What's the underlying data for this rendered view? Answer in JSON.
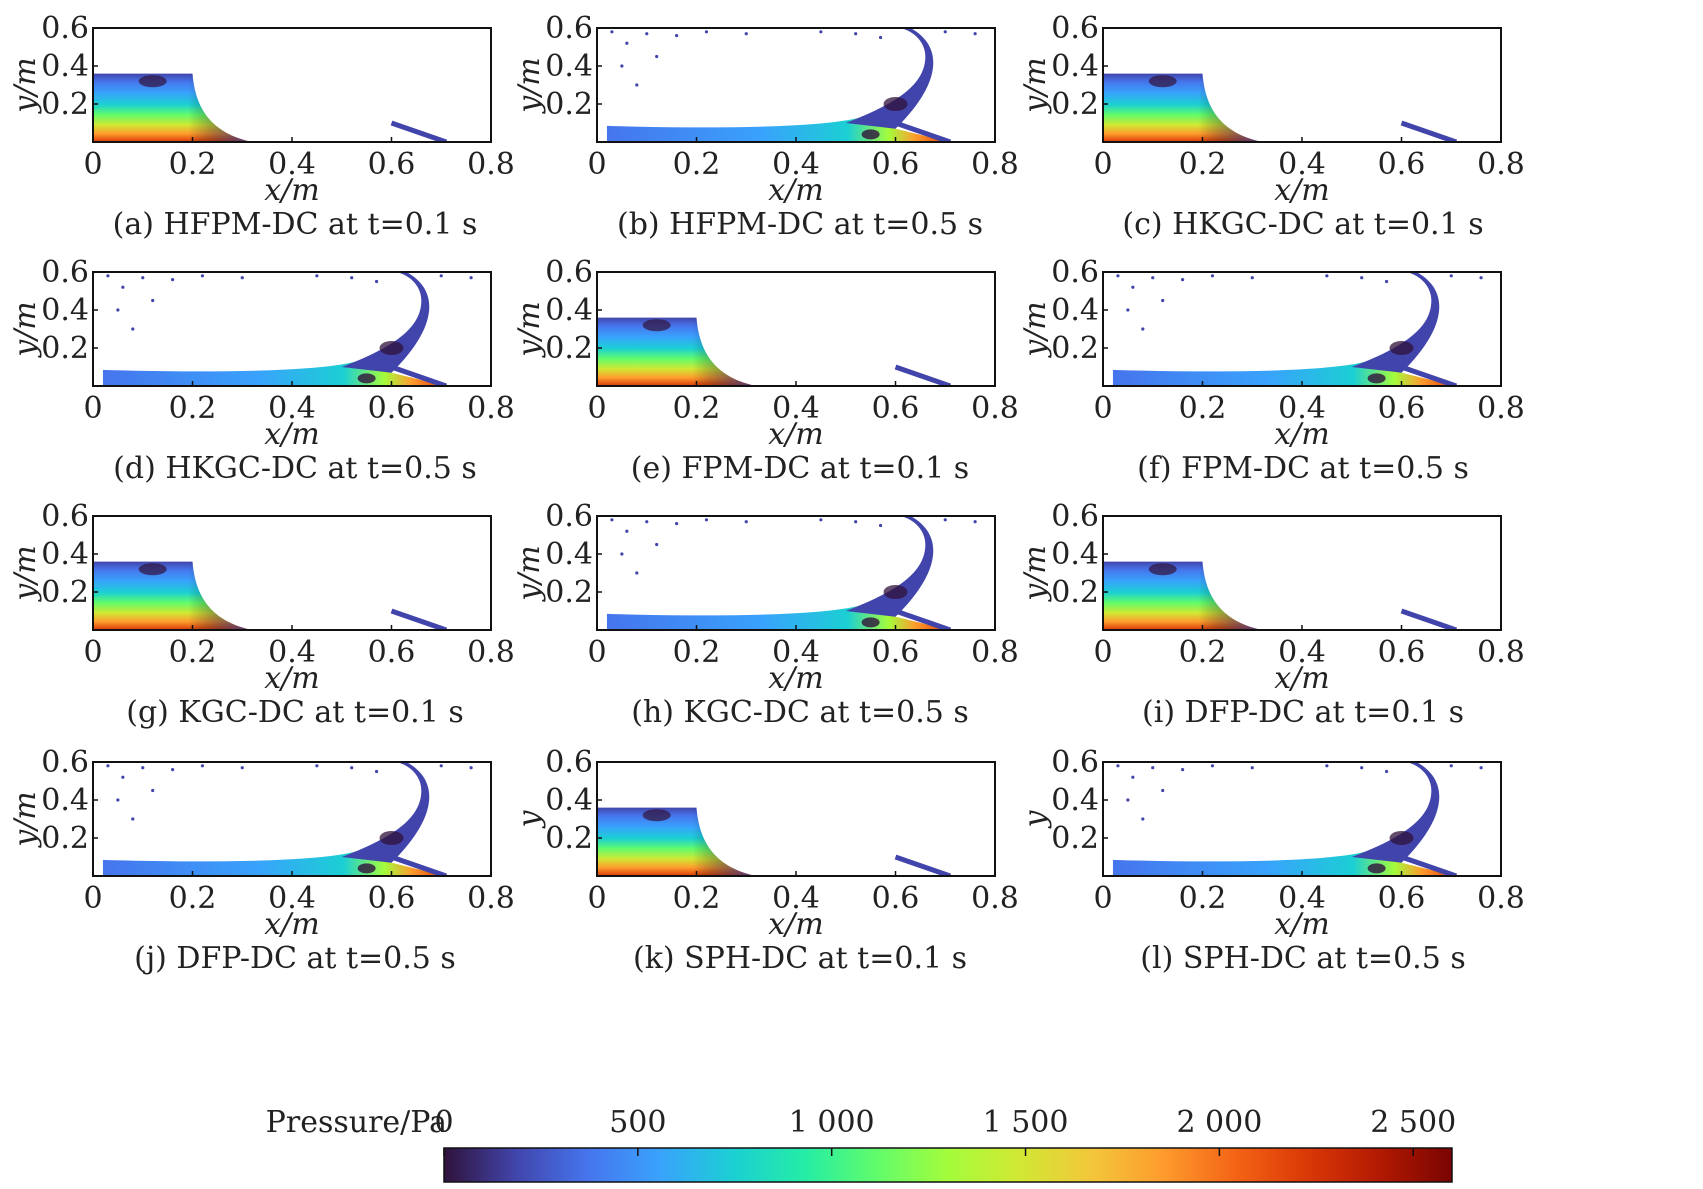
{
  "figure": {
    "colorbar": {
      "label": "Pressure/Pa",
      "ticks": [
        0,
        500,
        1000,
        1500,
        2000,
        2500
      ],
      "tick_labels": [
        "0",
        "500",
        "1 000",
        "1 500",
        "2 000",
        "2 500"
      ],
      "range": [
        0,
        2600
      ],
      "colormap": [
        "#30123b",
        "#4145ab",
        "#4675ed",
        "#39a2fc",
        "#1bcfd4",
        "#24eca6",
        "#61fc6c",
        "#a4fc3b",
        "#d1e834",
        "#f3c63a",
        "#fe9b2d",
        "#f36315",
        "#d93806",
        "#b11901",
        "#7a0402"
      ]
    }
  },
  "chart_data": [
    {
      "id": "a",
      "type": "heatmap",
      "caption": "(a) HFPM-DC at t=0.1 s",
      "method": "HFPM-DC",
      "time_s": 0.1,
      "xlabel": "x/m",
      "ylabel": "y/m",
      "xlim": [
        0,
        0.8
      ],
      "ylim": [
        0,
        0.6
      ],
      "xticks": [
        "0",
        "0.2",
        "0.4",
        "0.6",
        "0.8"
      ],
      "yticks": [
        "0.2",
        "0.4",
        "0.6"
      ]
    },
    {
      "id": "b",
      "type": "heatmap",
      "caption": "(b) HFPM-DC at t=0.5 s",
      "method": "HFPM-DC",
      "time_s": 0.5,
      "xlabel": "x/m",
      "ylabel": "y/m",
      "xlim": [
        0,
        0.8
      ],
      "ylim": [
        0,
        0.6
      ],
      "xticks": [
        "0",
        "0.2",
        "0.4",
        "0.6",
        "0.8"
      ],
      "yticks": [
        "0.2",
        "0.4",
        "0.6"
      ]
    },
    {
      "id": "c",
      "type": "heatmap",
      "caption": "(c) HKGC-DC at t=0.1 s",
      "method": "HKGC-DC",
      "time_s": 0.1,
      "xlabel": "x/m",
      "ylabel": "y/m",
      "xlim": [
        0,
        0.8
      ],
      "ylim": [
        0,
        0.6
      ],
      "xticks": [
        "0",
        "0.2",
        "0.4",
        "0.6",
        "0.8"
      ],
      "yticks": [
        "0.2",
        "0.4",
        "0.6"
      ]
    },
    {
      "id": "d",
      "type": "heatmap",
      "caption": "(d) HKGC-DC at t=0.5 s",
      "method": "HKGC-DC",
      "time_s": 0.5,
      "xlabel": "x/m",
      "ylabel": "y/m",
      "xlim": [
        0,
        0.8
      ],
      "ylim": [
        0,
        0.6
      ],
      "xticks": [
        "0",
        "0.2",
        "0.4",
        "0.6",
        "0.8"
      ],
      "yticks": [
        "0.2",
        "0.4",
        "0.6"
      ]
    },
    {
      "id": "e",
      "type": "heatmap",
      "caption": "(e) FPM-DC at t=0.1 s",
      "method": "FPM-DC",
      "time_s": 0.1,
      "xlabel": "x/m",
      "ylabel": "y/m",
      "xlim": [
        0,
        0.8
      ],
      "ylim": [
        0,
        0.6
      ],
      "xticks": [
        "0",
        "0.2",
        "0.4",
        "0.6",
        "0.8"
      ],
      "yticks": [
        "0.2",
        "0.4",
        "0.6"
      ]
    },
    {
      "id": "f",
      "type": "heatmap",
      "caption": "(f) FPM-DC at t=0.5 s",
      "method": "FPM-DC",
      "time_s": 0.5,
      "xlabel": "x/m",
      "ylabel": "y/m",
      "xlim": [
        0,
        0.8
      ],
      "ylim": [
        0,
        0.6
      ],
      "xticks": [
        "0",
        "0.2",
        "0.4",
        "0.6",
        "0.8"
      ],
      "yticks": [
        "0.2",
        "0.4",
        "0.6"
      ]
    },
    {
      "id": "g",
      "type": "heatmap",
      "caption": "(g) KGC-DC at t=0.1 s",
      "method": "KGC-DC",
      "time_s": 0.1,
      "xlabel": "x/m",
      "ylabel": "y/m",
      "xlim": [
        0,
        0.8
      ],
      "ylim": [
        0,
        0.6
      ],
      "xticks": [
        "0",
        "0.2",
        "0.4",
        "0.6",
        "0.8"
      ],
      "yticks": [
        "0.2",
        "0.4",
        "0.6"
      ]
    },
    {
      "id": "h",
      "type": "heatmap",
      "caption": "(h) KGC-DC at t=0.5 s",
      "method": "KGC-DC",
      "time_s": 0.5,
      "xlabel": "x/m",
      "ylabel": "y/m",
      "xlim": [
        0,
        0.8
      ],
      "ylim": [
        0,
        0.6
      ],
      "xticks": [
        "0",
        "0.2",
        "0.4",
        "0.6",
        "0.8"
      ],
      "yticks": [
        "0.2",
        "0.4",
        "0.6"
      ]
    },
    {
      "id": "i",
      "type": "heatmap",
      "caption": "(i) DFP-DC at t=0.1 s",
      "method": "DFP-DC",
      "time_s": 0.1,
      "xlabel": "x/m",
      "ylabel": "y/m",
      "xlim": [
        0,
        0.8
      ],
      "ylim": [
        0,
        0.6
      ],
      "xticks": [
        "0",
        "0.2",
        "0.4",
        "0.6",
        "0.8"
      ],
      "yticks": [
        "0.2",
        "0.4",
        "0.6"
      ]
    },
    {
      "id": "j",
      "type": "heatmap",
      "caption": "(j) DFP-DC at t=0.5 s",
      "method": "DFP-DC",
      "time_s": 0.5,
      "xlabel": "x/m",
      "ylabel": "y/m",
      "xlim": [
        0,
        0.8
      ],
      "ylim": [
        0,
        0.6
      ],
      "xticks": [
        "0",
        "0.2",
        "0.4",
        "0.6",
        "0.8"
      ],
      "yticks": [
        "0.2",
        "0.4",
        "0.6"
      ]
    },
    {
      "id": "k",
      "type": "heatmap",
      "caption": "(k) SPH-DC at t=0.1 s",
      "method": "SPH-DC",
      "time_s": 0.1,
      "xlabel": "x/m",
      "ylabel": "y",
      "xlim": [
        0,
        0.8
      ],
      "ylim": [
        0,
        0.6
      ],
      "xticks": [
        "0",
        "0.2",
        "0.4",
        "0.6",
        "0.8"
      ],
      "yticks": [
        "0.2",
        "0.4",
        "0.6"
      ]
    },
    {
      "id": "l",
      "type": "heatmap",
      "caption": "(l) SPH-DC at t=0.5 s",
      "method": "SPH-DC",
      "time_s": 0.5,
      "xlabel": "x/m",
      "ylabel": "y",
      "xlim": [
        0,
        0.8
      ],
      "ylim": [
        0,
        0.6
      ],
      "xticks": [
        "0",
        "0.2",
        "0.4",
        "0.6",
        "0.8"
      ],
      "yticks": [
        "0.2",
        "0.4",
        "0.6"
      ]
    }
  ]
}
